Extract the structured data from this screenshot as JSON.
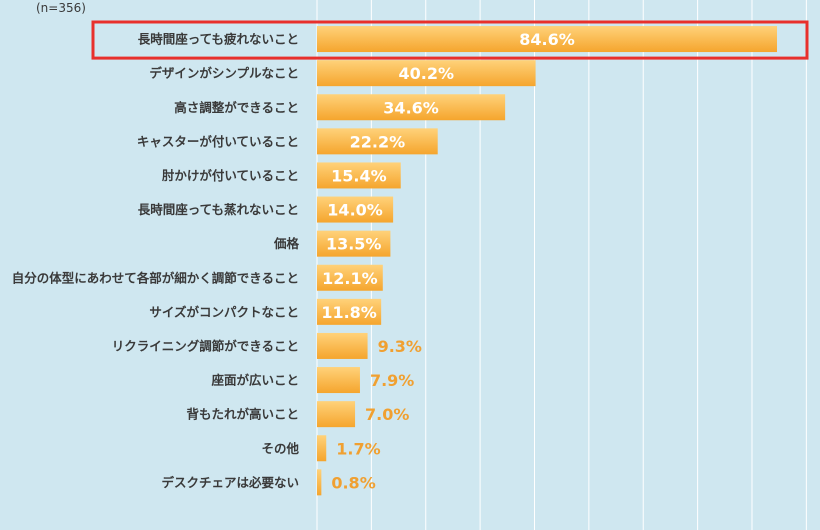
{
  "chart_data": {
    "type": "bar",
    "orientation": "horizontal",
    "note": "(n=356)",
    "categories": [
      "長時間座っても疲れないこと",
      "デザインがシンプルなこと",
      "高さ調整ができること",
      "キャスターが付いていること",
      "肘かけが付いていること",
      "長時間座っても蒸れないこと",
      "価格",
      "自分の体型にあわせて各部が細かく調節できること",
      "サイズがコンパクトなこと",
      "リクライニング調節ができること",
      "座面が広いこと",
      "背もたれが高いこと",
      "その他",
      "デスクチェアは必要ない"
    ],
    "values": [
      84.6,
      40.2,
      34.6,
      22.2,
      15.4,
      14.0,
      13.5,
      12.1,
      11.8,
      9.3,
      7.9,
      7.0,
      1.7,
      0.8
    ],
    "value_labels": [
      "84.6%",
      "40.2%",
      "34.6%",
      "22.2%",
      "15.4%",
      "14.0%",
      "13.5%",
      "12.1%",
      "11.8%",
      "9.3%",
      "7.9%",
      "7.0%",
      "1.7%",
      "0.8%"
    ],
    "xlim": [
      0,
      90
    ],
    "grid": true,
    "highlight_index": 0,
    "colors": {
      "background": "#cfe7f0",
      "bar": "#f5a52d",
      "bar_gradient_light": "#ffd27a",
      "grid": "#ffffff",
      "highlight": "#e8302c",
      "label_outside": "#f0a031"
    }
  }
}
